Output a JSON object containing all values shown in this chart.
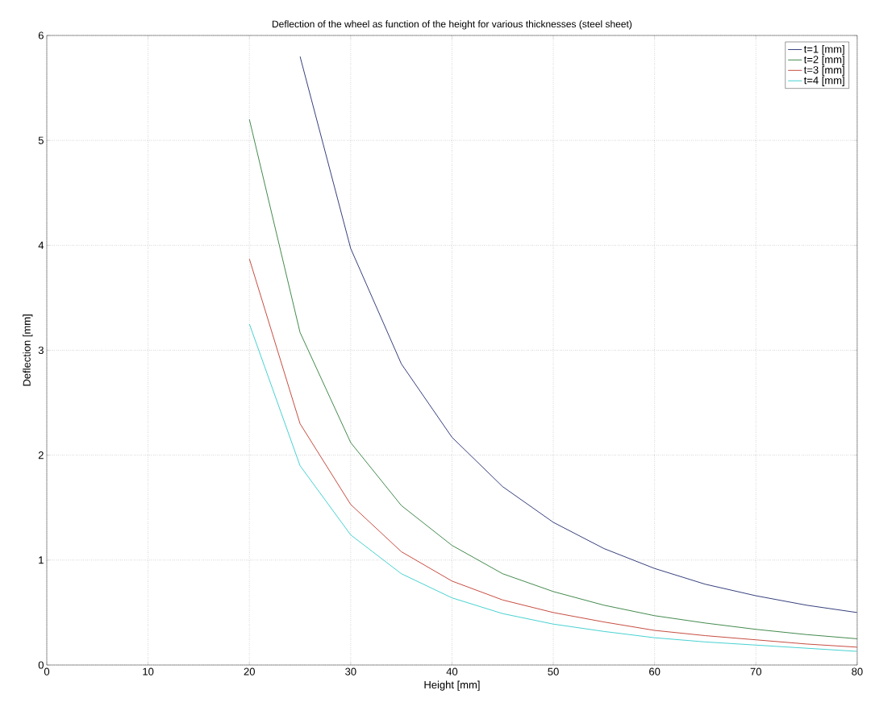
{
  "chart_data": {
    "type": "line",
    "title": "Deflection of the wheel as function of the height for various thicknesses (steel sheet)",
    "xlabel": "Height [mm]",
    "ylabel": "Deflection [mm]",
    "x": [
      20,
      25,
      30,
      35,
      40,
      45,
      50,
      55,
      60,
      65,
      70,
      75,
      80
    ],
    "series": [
      {
        "name": "t=1 [mm]",
        "color": "#1f2a6e",
        "x": [
          25,
          30,
          35,
          40,
          45,
          50,
          55,
          60,
          65,
          70,
          75,
          80
        ],
        "values": [
          5.8,
          3.97,
          2.87,
          2.17,
          1.7,
          1.36,
          1.11,
          0.92,
          0.77,
          0.66,
          0.57,
          0.5
        ]
      },
      {
        "name": "t=2 [mm]",
        "color": "#2e7d3a",
        "values": [
          5.2,
          3.17,
          2.12,
          1.52,
          1.14,
          0.87,
          0.7,
          0.57,
          0.47,
          0.4,
          0.34,
          0.29,
          0.25
        ]
      },
      {
        "name": "t=3 [mm]",
        "color": "#c0392b",
        "values": [
          3.87,
          2.3,
          1.53,
          1.08,
          0.8,
          0.62,
          0.5,
          0.41,
          0.33,
          0.28,
          0.24,
          0.2,
          0.17
        ]
      },
      {
        "name": "t=4 [mm]",
        "color": "#33cccc",
        "values": [
          3.25,
          1.9,
          1.24,
          0.87,
          0.64,
          0.49,
          0.39,
          0.32,
          0.26,
          0.22,
          0.19,
          0.16,
          0.13
        ]
      }
    ],
    "xlim": [
      0,
      80
    ],
    "ylim": [
      0,
      6
    ],
    "xticks": [
      0,
      10,
      20,
      30,
      40,
      50,
      60,
      70,
      80
    ],
    "yticks": [
      0,
      1,
      2,
      3,
      4,
      5,
      6
    ],
    "grid": true,
    "legend": "top right",
    "marker": "none",
    "line_style": "solid"
  }
}
